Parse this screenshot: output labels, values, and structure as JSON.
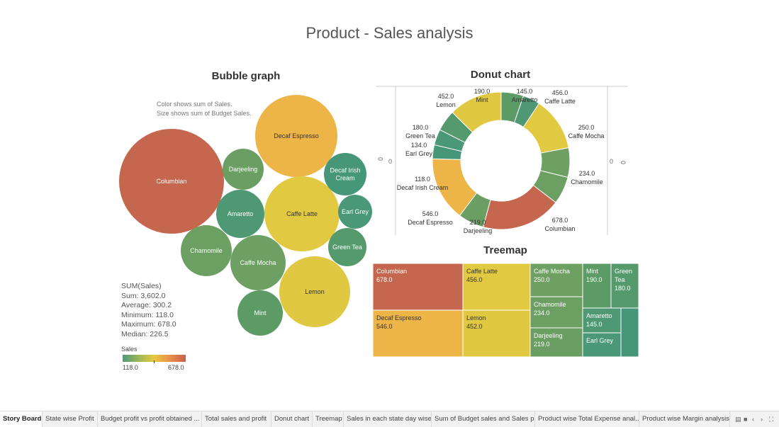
{
  "dashboard": {
    "title": "Product - Sales analysis"
  },
  "bubble": {
    "title": "Bubble graph",
    "note_line1": "Color shows sum of Sales.",
    "note_line2": "Size shows sum of Budget Sales.",
    "stats": {
      "header": "SUM(Sales)",
      "sum": "Sum: 3,602.0",
      "average": "Average: 300.2",
      "minimum": "Minimum: 118.0",
      "maximum": "Maximum: 678.0",
      "median": "Median: 226.5"
    },
    "legend": {
      "title": "Sales",
      "min": "118.0",
      "max": "678.0"
    }
  },
  "donut": {
    "title": "Donut chart",
    "axis_zero": "0"
  },
  "treemap": {
    "title": "Treemap"
  },
  "colors": {
    "low": "#4e9a7a",
    "mid_low": "#9bb65a",
    "mid": "#e8c840",
    "mid_high": "#e88f4c",
    "high": "#c8604a"
  },
  "chart_data": [
    {
      "type": "bubble",
      "title": "Bubble graph",
      "color_measure": "sum of Sales",
      "size_measure": "sum of Budget Sales",
      "points": [
        {
          "label": "Columbian",
          "sales": 678.0,
          "color": "#c5674e"
        },
        {
          "label": "Decaf Espresso",
          "sales": 546.0,
          "color": "#edb447"
        },
        {
          "label": "Caffe Latte",
          "sales": 456.0,
          "color": "#e2c942"
        },
        {
          "label": "Lemon",
          "sales": 452.0,
          "color": "#e0c843"
        },
        {
          "label": "Caffe Mocha",
          "sales": 250.0,
          "color": "#6e9f63"
        },
        {
          "label": "Chamomile",
          "sales": 234.0,
          "color": "#6c9f62"
        },
        {
          "label": "Darjeeling",
          "sales": 219.0,
          "color": "#6a9e62"
        },
        {
          "label": "Mint",
          "sales": 190.0,
          "color": "#5d9b66"
        },
        {
          "label": "Green Tea",
          "sales": 180.0,
          "color": "#559a6c"
        },
        {
          "label": "Amaretto",
          "sales": 145.0,
          "color": "#4f9874"
        },
        {
          "label": "Earl Grey",
          "sales": 134.0,
          "color": "#4a9877"
        },
        {
          "label": "Decaf Irish Cream",
          "sales": 118.0,
          "color": "#46977a"
        }
      ]
    },
    {
      "type": "pie",
      "title": "Donut chart",
      "slices": [
        {
          "label": "Mint",
          "value": 190.0,
          "value_text": "190.0",
          "color": "#5d9b66"
        },
        {
          "label": "Amaretto",
          "value": 145.0,
          "value_text": "145.0",
          "color": "#4f9874"
        },
        {
          "label": "Caffe Latte",
          "value": 456.0,
          "value_text": "456.0",
          "color": "#e2c942"
        },
        {
          "label": "Caffe Mocha",
          "value": 250.0,
          "value_text": "250.0",
          "color": "#6e9f63"
        },
        {
          "label": "Chamomile",
          "value": 234.0,
          "value_text": "234.0",
          "color": "#6c9f62"
        },
        {
          "label": "Columbian",
          "value": 678.0,
          "value_text": "678.0",
          "color": "#c5674e"
        },
        {
          "label": "Darjeeling",
          "value": 219.0,
          "value_text": "219.0",
          "color": "#6a9e62"
        },
        {
          "label": "Decaf Espresso",
          "value": 546.0,
          "value_text": "546.0",
          "color": "#edb447"
        },
        {
          "label": "Decaf Irish Cream",
          "value": 118.0,
          "value_text": "118.0",
          "color": "#46977a"
        },
        {
          "label": "Earl Grey",
          "value": 134.0,
          "value_text": "134.0",
          "color": "#4a9877"
        },
        {
          "label": "Green Tea",
          "value": 180.0,
          "value_text": "180.0",
          "color": "#559a6c"
        },
        {
          "label": "Lemon",
          "value": 452.0,
          "value_text": "452.0",
          "color": "#e0c843"
        }
      ]
    },
    {
      "type": "treemap",
      "title": "Treemap",
      "cells": [
        {
          "label": "Columbian",
          "value": 678.0,
          "value_text": "678.0",
          "color": "#c5674e"
        },
        {
          "label": "Decaf Espresso",
          "value": 546.0,
          "value_text": "546.0",
          "color": "#edb447"
        },
        {
          "label": "Caffe Latte",
          "value": 456.0,
          "value_text": "456.0",
          "color": "#e2c942"
        },
        {
          "label": "Lemon",
          "value": 452.0,
          "value_text": "452.0",
          "color": "#e0c843"
        },
        {
          "label": "Caffe Mocha",
          "value": 250.0,
          "value_text": "250.0",
          "color": "#6e9f63"
        },
        {
          "label": "Chamomile",
          "value": 234.0,
          "value_text": "234.0",
          "color": "#6c9f62"
        },
        {
          "label": "Darjeeling",
          "value": 219.0,
          "value_text": "219.0",
          "color": "#6a9e62"
        },
        {
          "label": "Mint",
          "value": 190.0,
          "value_text": "190.0",
          "color": "#5d9b66"
        },
        {
          "label": "Green Tea",
          "value": 180.0,
          "value_text": "180.0",
          "color": "#559a6c"
        },
        {
          "label": "Amaretto",
          "value": 145.0,
          "value_text": "145.0",
          "color": "#4f9874"
        },
        {
          "label": "Earl Grey",
          "value": 134.0,
          "value_text": "",
          "color": "#4a9877"
        },
        {
          "label": "",
          "value": 118.0,
          "value_text": "",
          "color": "#46977a"
        }
      ]
    }
  ],
  "tabs": [
    {
      "label": "Story Board",
      "active": true
    },
    {
      "label": "State wise Profit",
      "active": false
    },
    {
      "label": "Budget profit vs profit obtained ...",
      "active": false
    },
    {
      "label": "Total sales and profit",
      "active": false
    },
    {
      "label": "Donut chart",
      "active": false
    },
    {
      "label": "Treemap",
      "active": false
    },
    {
      "label": "Sales in each state day wise",
      "active": false
    },
    {
      "label": "Sum of Budget sales and Sales p...",
      "active": false
    },
    {
      "label": "Product wise Total Expense anal...",
      "active": false
    },
    {
      "label": "Product wise Margin analysis",
      "active": false
    }
  ],
  "tab_controls": [
    "grid-view-icon",
    "filmstrip-icon",
    "prev-icon",
    "next-icon",
    "fullscreen-icon"
  ]
}
